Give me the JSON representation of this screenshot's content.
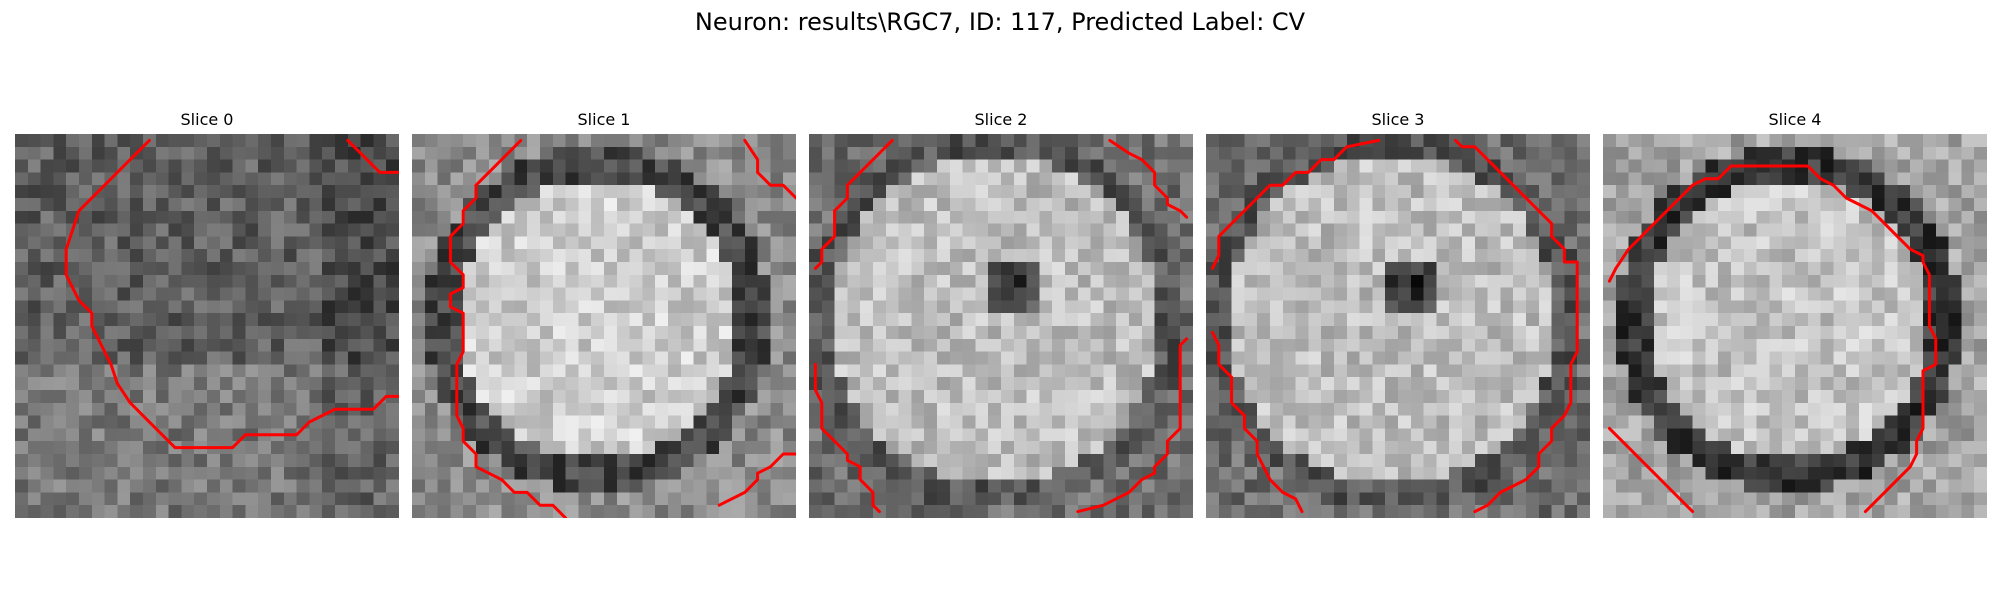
{
  "figure": {
    "title": "Neuron: results\\RGC7, ID: 117, Predicted Label: CV"
  },
  "colors": {
    "contour": "#ff0000",
    "background": "#ffffff"
  },
  "panels": [
    {
      "label": "Slice 0",
      "texture": "dim",
      "seed": 11
    },
    {
      "label": "Slice 1",
      "texture": "bright-soma",
      "seed": 23
    },
    {
      "label": "Slice 2",
      "texture": "bright-dark-center",
      "seed": 37
    },
    {
      "label": "Slice 3",
      "texture": "bright-dark-center",
      "seed": 53
    },
    {
      "label": "Slice 4",
      "texture": "ringed-soma",
      "seed": 71
    }
  ]
}
